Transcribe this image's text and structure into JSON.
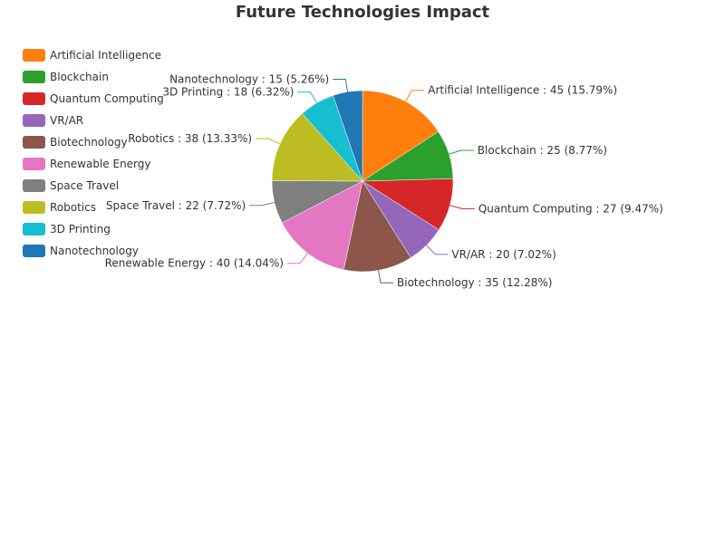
{
  "chart_data": {
    "type": "pie",
    "title": "Future Technologies Impact",
    "categories": [
      "Artificial Intelligence",
      "Blockchain",
      "Quantum Computing",
      "VR/AR",
      "Biotechnology",
      "Renewable Energy",
      "Space Travel",
      "Robotics",
      "3D Printing",
      "Nanotechnology"
    ],
    "values": [
      45,
      25,
      27,
      20,
      35,
      40,
      22,
      38,
      18,
      15
    ],
    "percentages": [
      "15.79%",
      "8.77%",
      "9.47%",
      "7.02%",
      "12.28%",
      "14.04%",
      "7.72%",
      "13.33%",
      "6.32%",
      "5.26%"
    ],
    "data_labels": [
      "Artificial Intelligence : 45 (15.79%)",
      "Blockchain : 25 (8.77%)",
      "Quantum Computing : 27 (9.47%)",
      "VR/AR : 20 (7.02%)",
      "Biotechnology : 35 (12.28%)",
      "Renewable Energy : 40 (14.04%)",
      "Space Travel : 22 (7.72%)",
      "Robotics : 38 (13.33%)",
      "3D Printing : 18 (6.32%)",
      "Nanotechnology : 15 (5.26%)"
    ],
    "colors": [
      "#ff7f0e",
      "#2ca02c",
      "#d62728",
      "#9467bd",
      "#8c564b",
      "#e377c2",
      "#7f7f7f",
      "#bcbd22",
      "#17becf",
      "#1f77b4"
    ],
    "legend_position": "left",
    "start_angle": "12 o'clock, clockwise"
  }
}
